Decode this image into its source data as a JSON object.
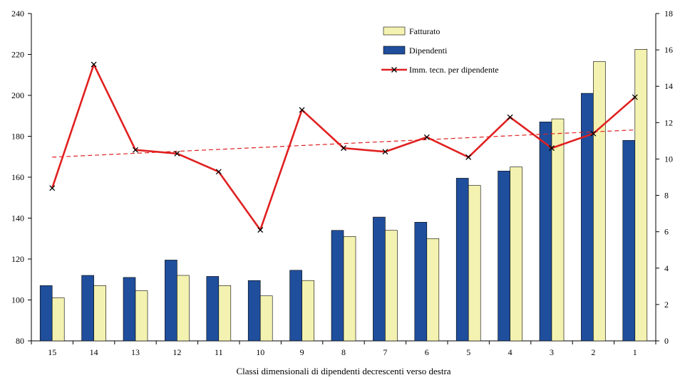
{
  "chart_data": {
    "type": "bar",
    "title": "",
    "xlabel": "Classi dimensionali di dipendenti decrescenti verso destra",
    "categories": [
      "15",
      "14",
      "13",
      "12",
      "11",
      "10",
      "9",
      "8",
      "7",
      "6",
      "5",
      "4",
      "3",
      "2",
      "1"
    ],
    "y_left": {
      "min": 80,
      "max": 240,
      "step": 20,
      "ticks": [
        "80",
        "100",
        "120",
        "140",
        "160",
        "180",
        "200",
        "220",
        "240"
      ]
    },
    "y_right": {
      "min": 0,
      "max": 18,
      "step": 2,
      "ticks": [
        "0",
        "2",
        "4",
        "6",
        "8",
        "10",
        "12",
        "14",
        "16",
        "18"
      ]
    },
    "series": [
      {
        "name": "Dipendenti",
        "type": "bar",
        "axis": "left",
        "color": "#1f4e9c",
        "values": [
          107,
          112,
          111,
          119.5,
          111.5,
          109.5,
          114.5,
          134,
          140.5,
          138,
          159.5,
          163,
          187,
          201,
          178
        ]
      },
      {
        "name": "Fatturato",
        "type": "bar",
        "axis": "left",
        "color": "#f4f2b0",
        "values": [
          101,
          107,
          104.5,
          112,
          107,
          102,
          109.5,
          131,
          134,
          130,
          156,
          165,
          188.5,
          216.5,
          222.5
        ]
      },
      {
        "name": "Imm. tecn. per dipendente",
        "type": "line",
        "axis": "right",
        "color": "#e02020",
        "values": [
          8.4,
          15.2,
          10.5,
          10.3,
          9.3,
          6.1,
          12.7,
          10.6,
          10.4,
          11.2,
          10.1,
          12.3,
          10.6,
          11.4,
          13.4
        ]
      }
    ],
    "trendline": {
      "series": "Imm. tecn. per dipendente",
      "axis": "right",
      "start": 10.1,
      "end": 11.6,
      "color": "#e02020",
      "style": "dashed"
    },
    "legend": {
      "position": "top-right",
      "items": [
        "Fatturato",
        "Dipendenti",
        "Imm. tecn. per dipendente"
      ]
    },
    "grid": false
  }
}
